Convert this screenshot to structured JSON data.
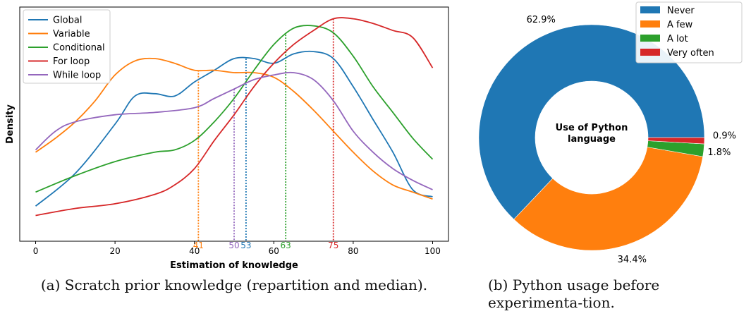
{
  "chart_data": [
    {
      "type": "line",
      "title": "",
      "xlabel": "Estimation of knowledge",
      "ylabel": "Density",
      "xlim": [
        -4,
        104
      ],
      "ylim": [
        0,
        1
      ],
      "xticks": [
        "0",
        "20",
        "40",
        "60",
        "80",
        "100"
      ],
      "xtick_values": [
        0,
        20,
        40,
        60,
        80,
        100
      ],
      "grid": false,
      "legend": "top-left",
      "series": [
        {
          "name": "Global",
          "color": "#1f77b4",
          "median": 53,
          "median_label": "53",
          "x": [
            0,
            10,
            20,
            25,
            30,
            35,
            40,
            45,
            50,
            55,
            60,
            65,
            70,
            75,
            80,
            85,
            90,
            95,
            100
          ],
          "y": [
            0.15,
            0.29,
            0.5,
            0.62,
            0.63,
            0.62,
            0.68,
            0.73,
            0.78,
            0.78,
            0.76,
            0.8,
            0.81,
            0.78,
            0.66,
            0.52,
            0.38,
            0.22,
            0.19
          ]
        },
        {
          "name": "Variable",
          "color": "#ff7f0e",
          "median": 41,
          "median_label": "41",
          "x": [
            0,
            5,
            10,
            15,
            20,
            25,
            30,
            35,
            40,
            45,
            50,
            55,
            60,
            65,
            70,
            75,
            80,
            85,
            90,
            95,
            100
          ],
          "y": [
            0.38,
            0.44,
            0.51,
            0.6,
            0.71,
            0.77,
            0.78,
            0.76,
            0.73,
            0.73,
            0.72,
            0.72,
            0.7,
            0.64,
            0.56,
            0.47,
            0.38,
            0.3,
            0.24,
            0.21,
            0.18
          ]
        },
        {
          "name": "Conditional",
          "color": "#2ca02c",
          "median": 63,
          "median_label": "63",
          "x": [
            0,
            10,
            20,
            30,
            35,
            40,
            45,
            50,
            55,
            60,
            65,
            70,
            75,
            80,
            85,
            90,
            95,
            100
          ],
          "y": [
            0.21,
            0.28,
            0.34,
            0.38,
            0.39,
            0.43,
            0.51,
            0.61,
            0.73,
            0.84,
            0.91,
            0.92,
            0.89,
            0.79,
            0.66,
            0.55,
            0.44,
            0.35
          ]
        },
        {
          "name": "For loop",
          "color": "#d62728",
          "median": 75,
          "median_label": "75",
          "x": [
            0,
            10,
            20,
            30,
            35,
            40,
            45,
            50,
            55,
            60,
            65,
            70,
            75,
            80,
            85,
            90,
            95,
            100
          ],
          "y": [
            0.11,
            0.14,
            0.16,
            0.2,
            0.24,
            0.31,
            0.43,
            0.54,
            0.66,
            0.76,
            0.84,
            0.9,
            0.95,
            0.95,
            0.93,
            0.9,
            0.87,
            0.74
          ]
        },
        {
          "name": "While loop",
          "color": "#9467bd",
          "median": 50,
          "median_label": "50",
          "x": [
            0,
            5,
            10,
            20,
            30,
            40,
            45,
            50,
            55,
            60,
            65,
            70,
            75,
            80,
            85,
            90,
            95,
            100
          ],
          "y": [
            0.39,
            0.47,
            0.51,
            0.54,
            0.55,
            0.57,
            0.61,
            0.65,
            0.69,
            0.71,
            0.72,
            0.69,
            0.6,
            0.47,
            0.38,
            0.31,
            0.26,
            0.22
          ]
        }
      ]
    },
    {
      "type": "pie",
      "title": "Use of Python\nlanguage",
      "title_lines": [
        "Use of Python",
        "language"
      ],
      "legend": "top-right",
      "slices": [
        {
          "name": "Never",
          "value": 62.9,
          "label": "62.9%",
          "color": "#1f77b4"
        },
        {
          "name": "A few",
          "value": 34.4,
          "label": "34.4%",
          "color": "#ff7f0e"
        },
        {
          "name": "A lot",
          "value": 1.8,
          "label": "1.8%",
          "color": "#2ca02c"
        },
        {
          "name": "Very often",
          "value": 0.9,
          "label": "0.9%",
          "color": "#d62728"
        }
      ]
    }
  ],
  "captions": {
    "a": "(a) Scratch prior knowledge (repartition and median).",
    "b": "(b) Python usage before experimenta-tion."
  }
}
